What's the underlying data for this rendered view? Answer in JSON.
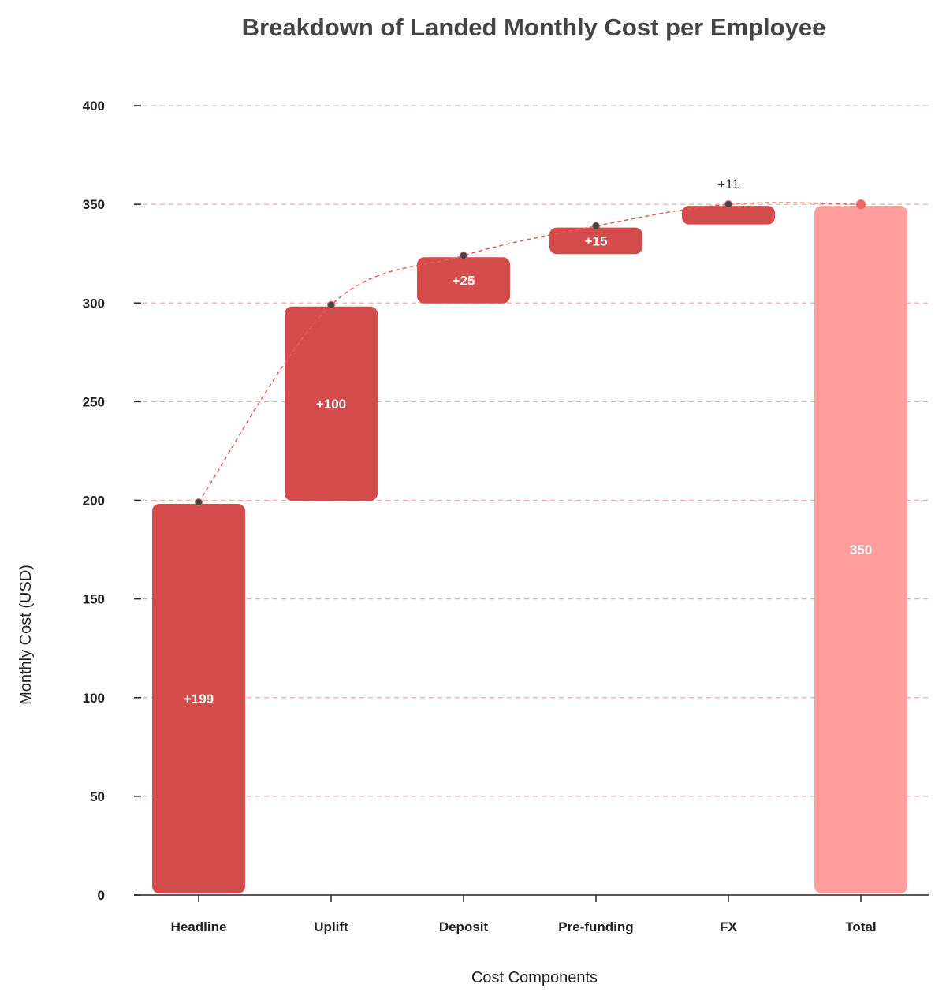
{
  "chart_data": {
    "type": "bar",
    "variant": "waterfall",
    "title": "Breakdown of Landed Monthly Cost per Employee",
    "xlabel": "Cost Components",
    "ylabel": "Monthly Cost (USD)",
    "ylim": [
      0,
      400
    ],
    "yticks": [
      0,
      50,
      100,
      150,
      200,
      250,
      300,
      350,
      400
    ],
    "ytick_labels": [
      "0",
      "50",
      "100",
      "150",
      "200",
      "250",
      "300",
      "350",
      "400"
    ],
    "grid": "horizontal dashed",
    "categories": [
      "Headline",
      "Uplift",
      "Deposit",
      "Pre-funding",
      "FX",
      "Total"
    ],
    "values": [
      199,
      100,
      25,
      15,
      11,
      350
    ],
    "bar_labels": [
      "+199",
      "+100",
      "+25",
      "+15",
      "+11",
      "350"
    ],
    "cumulative": [
      199,
      299,
      324,
      339,
      350,
      350
    ],
    "colors": {
      "increase": "#d44b4b",
      "total": "#ff9e9c",
      "grid": "#f4a9a9",
      "trend": "#e85a5a",
      "marker": "#444444",
      "total_marker": "#f06464"
    }
  }
}
